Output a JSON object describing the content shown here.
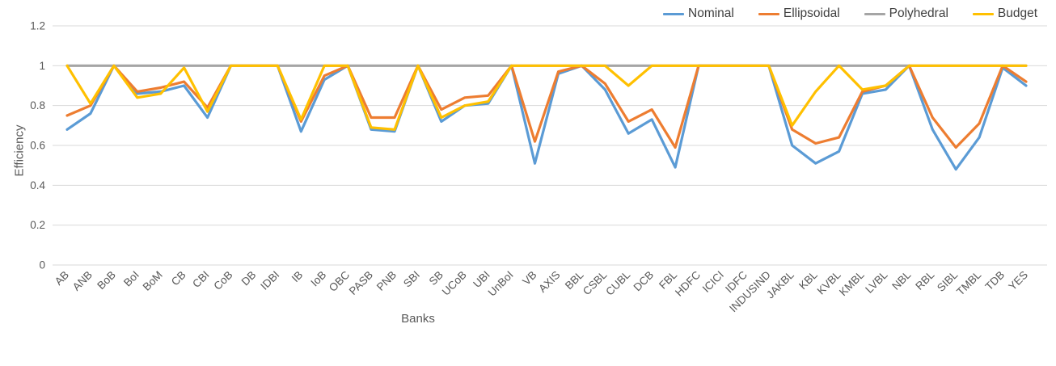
{
  "chart_data": {
    "type": "line",
    "title": "",
    "xlabel": "Banks",
    "ylabel": "Efficiency",
    "ylim": [
      0,
      1.2
    ],
    "yticks": [
      0,
      0.2,
      0.4,
      0.6,
      0.8,
      1,
      1.2
    ],
    "grid": true,
    "legend_position": "top-right",
    "categories": [
      "AB",
      "ANB",
      "BoB",
      "BoI",
      "BoM",
      "CB",
      "CBI",
      "CoB",
      "DB",
      "IDBI",
      "IB",
      "IoB",
      "OBC",
      "PASB",
      "PNB",
      "SBI",
      "SB",
      "UCoB",
      "UBI",
      "UnBoI",
      "VB",
      "AXIS",
      "BBL",
      "CSBL",
      "CUBL",
      "DCB",
      "FBL",
      "HDFC",
      "ICICI",
      "IDFC",
      "INDUSIND",
      "JAKBL",
      "KBL",
      "KVBL",
      "KMBL",
      "LVBL",
      "NBL",
      "RBL",
      "SIBL",
      "TMBL",
      "TDB",
      "YES"
    ],
    "series": [
      {
        "name": "Nominal",
        "color": "#5B9BD5",
        "values": [
          0.68,
          0.76,
          1,
          0.86,
          0.87,
          0.9,
          0.74,
          1,
          1,
          1,
          0.67,
          0.93,
          1,
          0.68,
          0.67,
          1,
          0.72,
          0.8,
          0.81,
          1,
          0.51,
          0.96,
          1,
          0.88,
          0.66,
          0.73,
          0.49,
          1,
          1,
          1,
          1,
          0.6,
          0.51,
          0.57,
          0.86,
          0.88,
          1,
          0.68,
          0.48,
          0.64,
          0.99,
          0.9
        ]
      },
      {
        "name": "Ellipsoidal",
        "color": "#ED7D31",
        "values": [
          0.75,
          0.8,
          1,
          0.87,
          0.89,
          0.92,
          0.79,
          1,
          1,
          1,
          0.72,
          0.95,
          1,
          0.74,
          0.74,
          1,
          0.78,
          0.84,
          0.85,
          1,
          0.62,
          0.97,
          1,
          0.91,
          0.72,
          0.78,
          0.59,
          1,
          1,
          1,
          1,
          0.68,
          0.61,
          0.64,
          0.87,
          0.9,
          1,
          0.74,
          0.59,
          0.71,
          1,
          0.92
        ]
      },
      {
        "name": "Polyhedral",
        "color": "#A5A5A5",
        "values": [
          1,
          1,
          1,
          1,
          1,
          1,
          1,
          1,
          1,
          1,
          1,
          1,
          1,
          1,
          1,
          1,
          1,
          1,
          1,
          1,
          1,
          1,
          1,
          1,
          1,
          1,
          1,
          1,
          1,
          1,
          1,
          1,
          1,
          1,
          1,
          1,
          1,
          1,
          1,
          1,
          1,
          1
        ]
      },
      {
        "name": "Budget",
        "color": "#FFC000",
        "values": [
          1,
          0.81,
          1,
          0.84,
          0.86,
          0.99,
          0.77,
          1,
          1,
          1,
          0.73,
          1,
          1,
          0.69,
          0.68,
          1,
          0.74,
          0.8,
          0.82,
          1,
          1,
          1,
          1,
          1,
          0.9,
          1,
          1,
          1,
          1,
          1,
          1,
          0.7,
          0.87,
          1,
          0.88,
          0.9,
          1,
          1,
          1,
          1,
          1,
          1
        ]
      }
    ]
  },
  "colors": {
    "background": "#FFFFFF",
    "gridline": "#D9D9D9",
    "tick_label": "#595959",
    "axis_title": "#595959",
    "legend_text": "#404040"
  }
}
